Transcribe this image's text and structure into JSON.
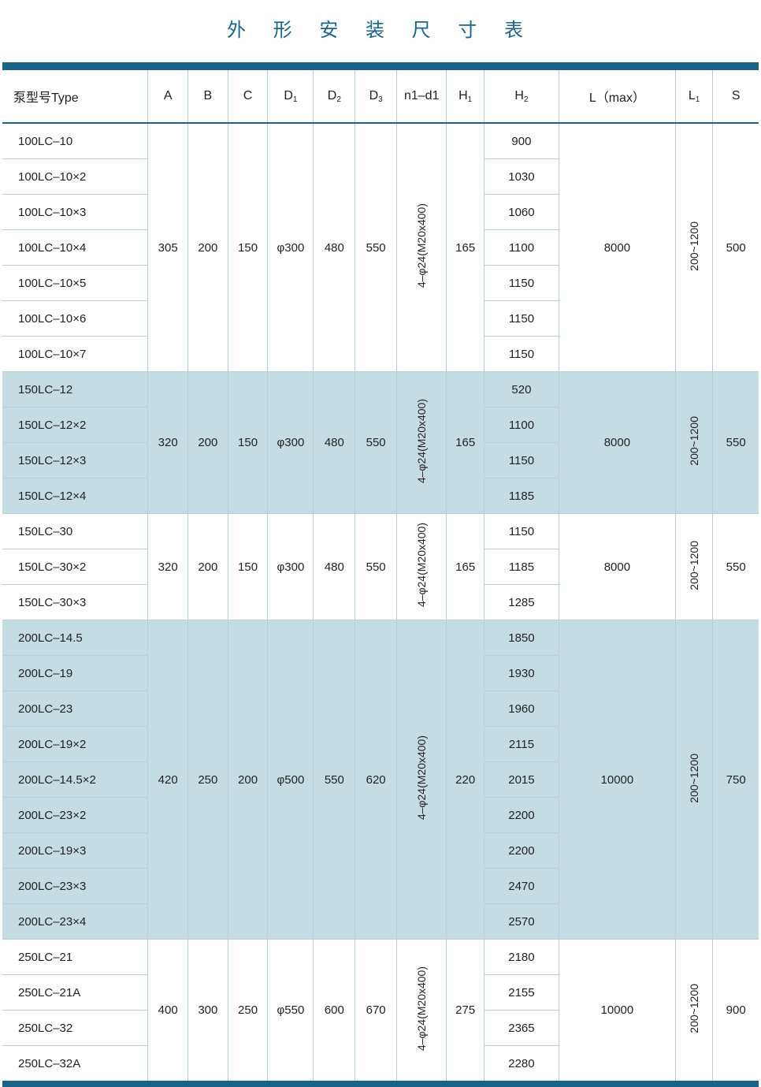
{
  "title": "外 形 安 装 尺 寸 表",
  "headers": {
    "type": "泵型号Type",
    "A": "A",
    "B": "B",
    "C": "C",
    "D1": "D",
    "D1sub": "1",
    "D2": "D",
    "D2sub": "2",
    "D3": "D",
    "D3sub": "3",
    "n1d1": "n1–d1",
    "H1": "H",
    "H1sub": "1",
    "H2": "H",
    "H2sub": "2",
    "Lmax": "L（max）",
    "L1": "L",
    "L1sub": "1",
    "S": "S"
  },
  "groups": [
    {
      "shade": false,
      "A": "305",
      "B": "200",
      "C": "150",
      "D1": "φ300",
      "D2": "480",
      "D3": "550",
      "n1d1": "4–φ24(M20x400)",
      "H1": "165",
      "Lmax": "8000",
      "L1": "200~1200",
      "S": "500",
      "rows": [
        {
          "type": "100LC–10",
          "H2": "900"
        },
        {
          "type": "100LC–10×2",
          "H2": "1030"
        },
        {
          "type": "100LC–10×3",
          "H2": "1060"
        },
        {
          "type": "100LC–10×4",
          "H2": "1100"
        },
        {
          "type": "100LC–10×5",
          "H2": "1150"
        },
        {
          "type": "100LC–10×6",
          "H2": "1150"
        },
        {
          "type": "100LC–10×7",
          "H2": "1150"
        }
      ]
    },
    {
      "shade": true,
      "A": "320",
      "B": "200",
      "C": "150",
      "D1": "φ300",
      "D2": "480",
      "D3": "550",
      "n1d1": "4–φ24(M20x400)",
      "H1": "165",
      "Lmax": "8000",
      "L1": "200~1200",
      "S": "550",
      "rows": [
        {
          "type": "150LC–12",
          "H2": "520"
        },
        {
          "type": "150LC–12×2",
          "H2": "1100"
        },
        {
          "type": "150LC–12×3",
          "H2": "1150"
        },
        {
          "type": "150LC–12×4",
          "H2": "1185"
        }
      ]
    },
    {
      "shade": false,
      "A": "320",
      "B": "200",
      "C": "150",
      "D1": "φ300",
      "D2": "480",
      "D3": "550",
      "n1d1": "4–φ24(M20x400)",
      "H1": "165",
      "Lmax": "8000",
      "L1": "200~1200",
      "S": "550",
      "rows": [
        {
          "type": "150LC–30",
          "H2": "1150"
        },
        {
          "type": "150LC–30×2",
          "H2": "1185"
        },
        {
          "type": "150LC–30×3",
          "H2": "1285"
        }
      ]
    },
    {
      "shade": true,
      "A": "420",
      "B": "250",
      "C": "200",
      "D1": "φ500",
      "D2": "550",
      "D3": "620",
      "n1d1": "4–φ24(M20x400)",
      "H1": "220",
      "Lmax": "10000",
      "L1": "200~1200",
      "S": "750",
      "rows": [
        {
          "type": "200LC–14.5",
          "H2": "1850"
        },
        {
          "type": "200LC–19",
          "H2": "1930"
        },
        {
          "type": "200LC–23",
          "H2": "1960"
        },
        {
          "type": "200LC–19×2",
          "H2": "2115"
        },
        {
          "type": "200LC–14.5×2",
          "H2": "2015"
        },
        {
          "type": "200LC–23×2",
          "H2": "2200"
        },
        {
          "type": "200LC–19×3",
          "H2": "2200"
        },
        {
          "type": "200LC–23×3",
          "H2": "2470"
        },
        {
          "type": "200LC–23×4",
          "H2": "2570"
        }
      ]
    },
    {
      "shade": false,
      "A": "400",
      "B": "300",
      "C": "250",
      "D1": "φ550",
      "D2": "600",
      "D3": "670",
      "n1d1": "4–φ24(M20x400)",
      "H1": "275",
      "Lmax": "10000",
      "L1": "200~1200",
      "S": "900",
      "rows": [
        {
          "type": "250LC–21",
          "H2": "2180"
        },
        {
          "type": "250LC–21A",
          "H2": "2155"
        },
        {
          "type": "250LC–32",
          "H2": "2365"
        },
        {
          "type": "250LC–32A",
          "H2": "2280"
        }
      ]
    }
  ],
  "colors": {
    "brand": "#1a6489",
    "shade": "#c3dde3",
    "grid": "#b9cfd6",
    "bg": "#ffffff"
  }
}
